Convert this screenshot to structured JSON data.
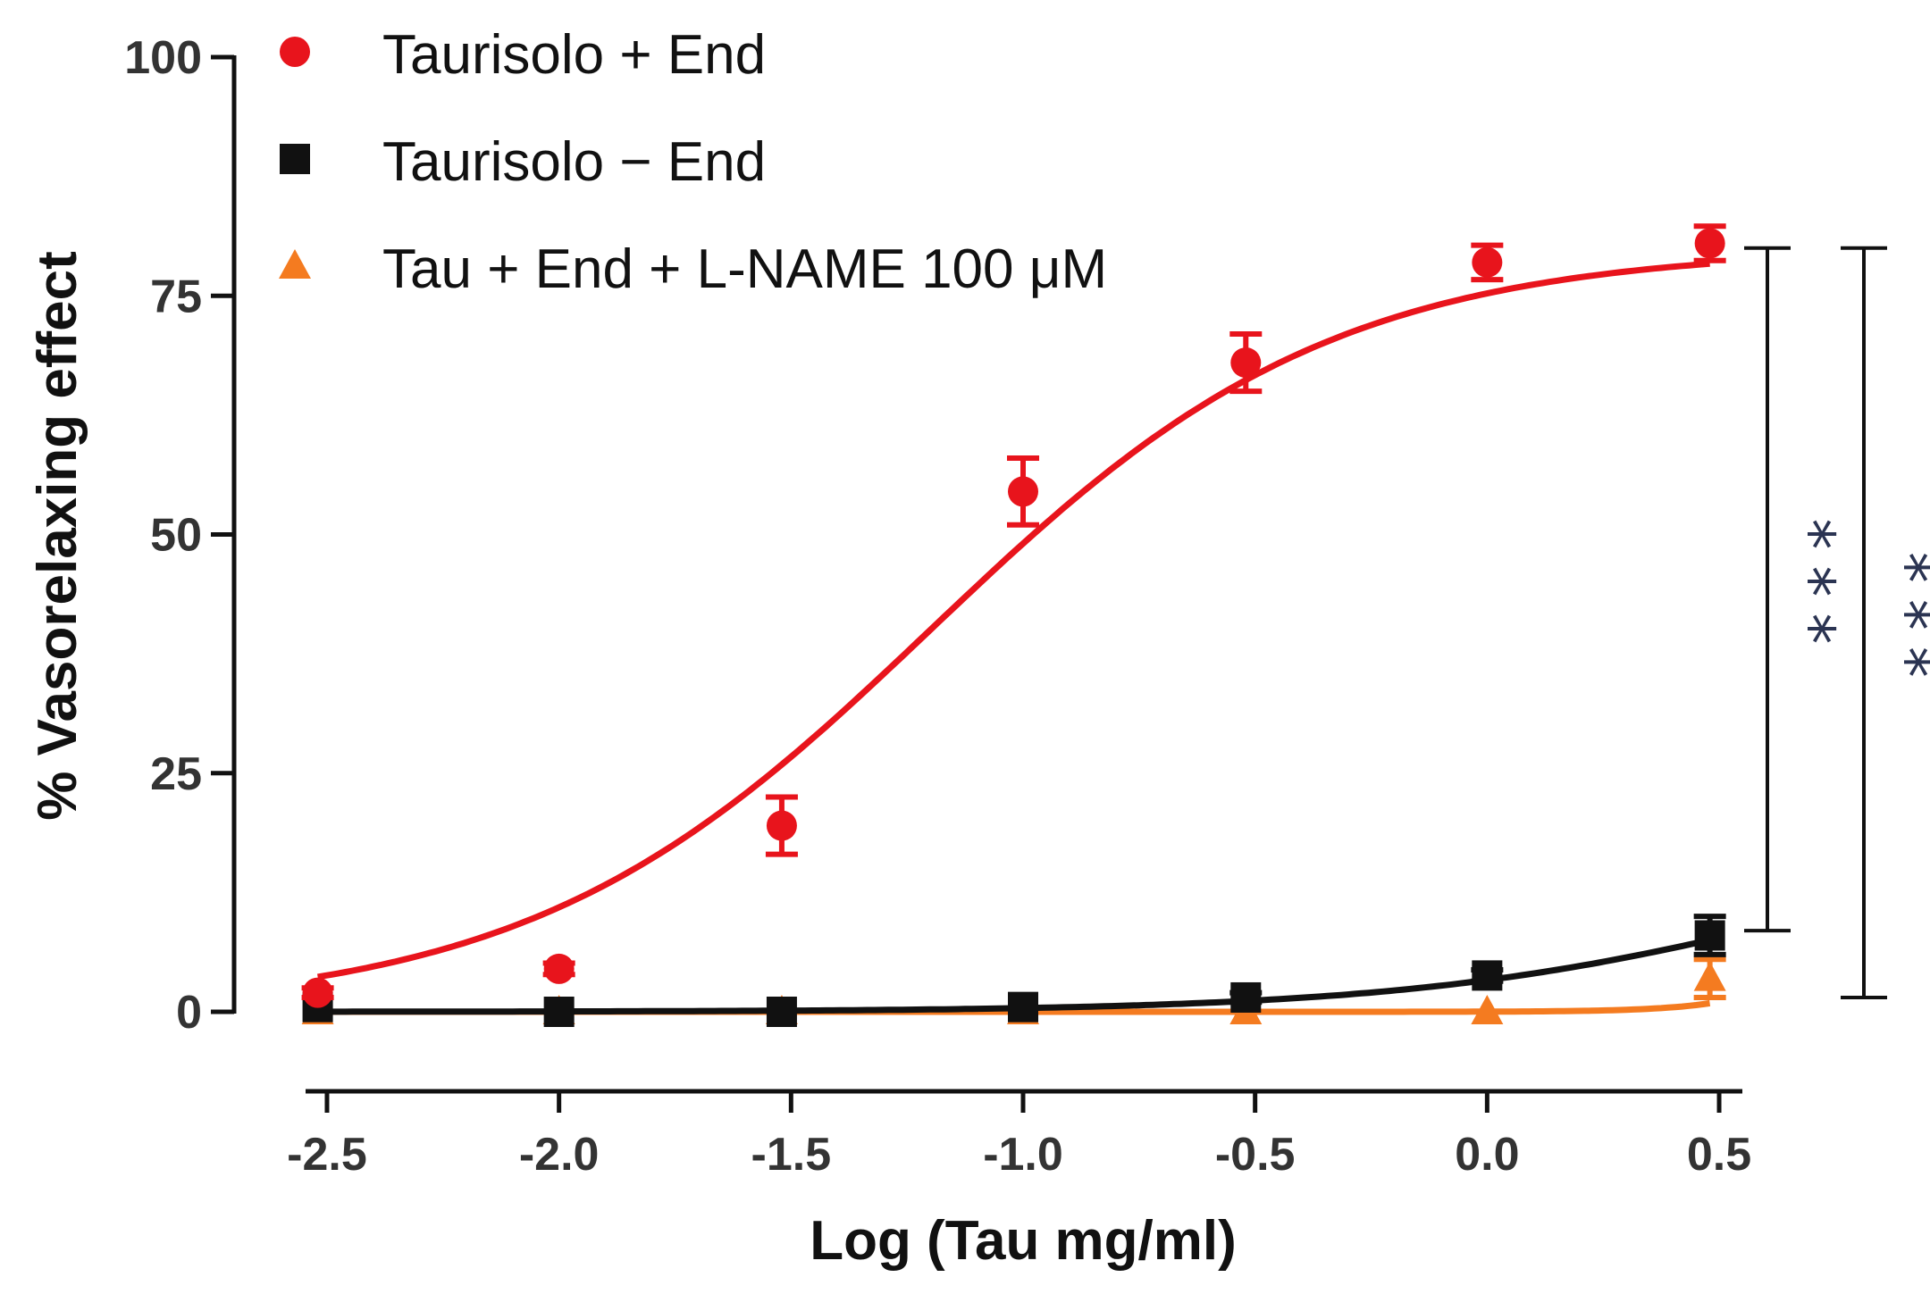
{
  "chart_data": {
    "type": "scatter",
    "title": "",
    "xlabel": "Log (Tau mg/ml)",
    "ylabel": "% Vasorelaxing effect",
    "xlim": [
      -2.55,
      0.55
    ],
    "ylim": [
      0,
      100
    ],
    "xticks": [
      "-2.5",
      "-2.0",
      "-1.5",
      "-1.0",
      "-0.5",
      "0.0",
      "0.5"
    ],
    "xtick_values": [
      -2.5,
      -2.0,
      -1.5,
      -1.0,
      -0.5,
      0.0,
      0.5
    ],
    "yticks": [
      "0",
      "25",
      "50",
      "75",
      "100"
    ],
    "ytick_values": [
      0,
      25,
      50,
      75,
      100
    ],
    "legend_position": "top-left",
    "grid": false,
    "series": [
      {
        "name": "Taurisolo + End",
        "color": "#e8141c",
        "marker": "circle",
        "x": [
          -2.52,
          -2.0,
          -1.52,
          -1.0,
          -0.52,
          0.0,
          0.48
        ],
        "y": [
          2,
          4.5,
          19.5,
          54.5,
          68,
          78.5,
          80.5
        ],
        "err": [
          0.5,
          0.6,
          3,
          3.5,
          3,
          1.8,
          1.8
        ],
        "fit": {
          "bottom": 0,
          "top": 80,
          "logEC50": -1.2,
          "hill": 1.0
        }
      },
      {
        "name": "Taurisolo − End",
        "color": "#111111",
        "marker": "square",
        "x": [
          -2.52,
          -2.0,
          -1.52,
          -1.0,
          -0.52,
          0.0,
          0.48
        ],
        "y": [
          0.5,
          0,
          0,
          0.5,
          1.5,
          3.8,
          8
        ],
        "err": [
          0,
          0,
          0,
          0.3,
          0.5,
          0.6,
          2
        ],
        "fit": {
          "bottom": 0,
          "top": 20,
          "logEC50": 0.7,
          "hill": 1.0
        }
      },
      {
        "name": "Tau + End + L-NAME 100 μM",
        "color": "#f47b20",
        "marker": "triangle",
        "x": [
          -2.52,
          -2.0,
          -1.52,
          -1.0,
          -0.52,
          0.0,
          0.48
        ],
        "y": [
          0,
          0,
          0,
          0,
          0,
          0,
          3.5
        ],
        "err": [
          0,
          0,
          0,
          0,
          0,
          0,
          2
        ],
        "fit": {
          "bottom": 0,
          "top": 60,
          "logEC50": 1.0,
          "hill": 3.5
        }
      }
    ],
    "annotations": [
      {
        "text": "***",
        "y_top": 80,
        "y_bottom": 8.5
      },
      {
        "text": "***",
        "y_top": 80,
        "y_bottom": 1.5
      }
    ]
  }
}
